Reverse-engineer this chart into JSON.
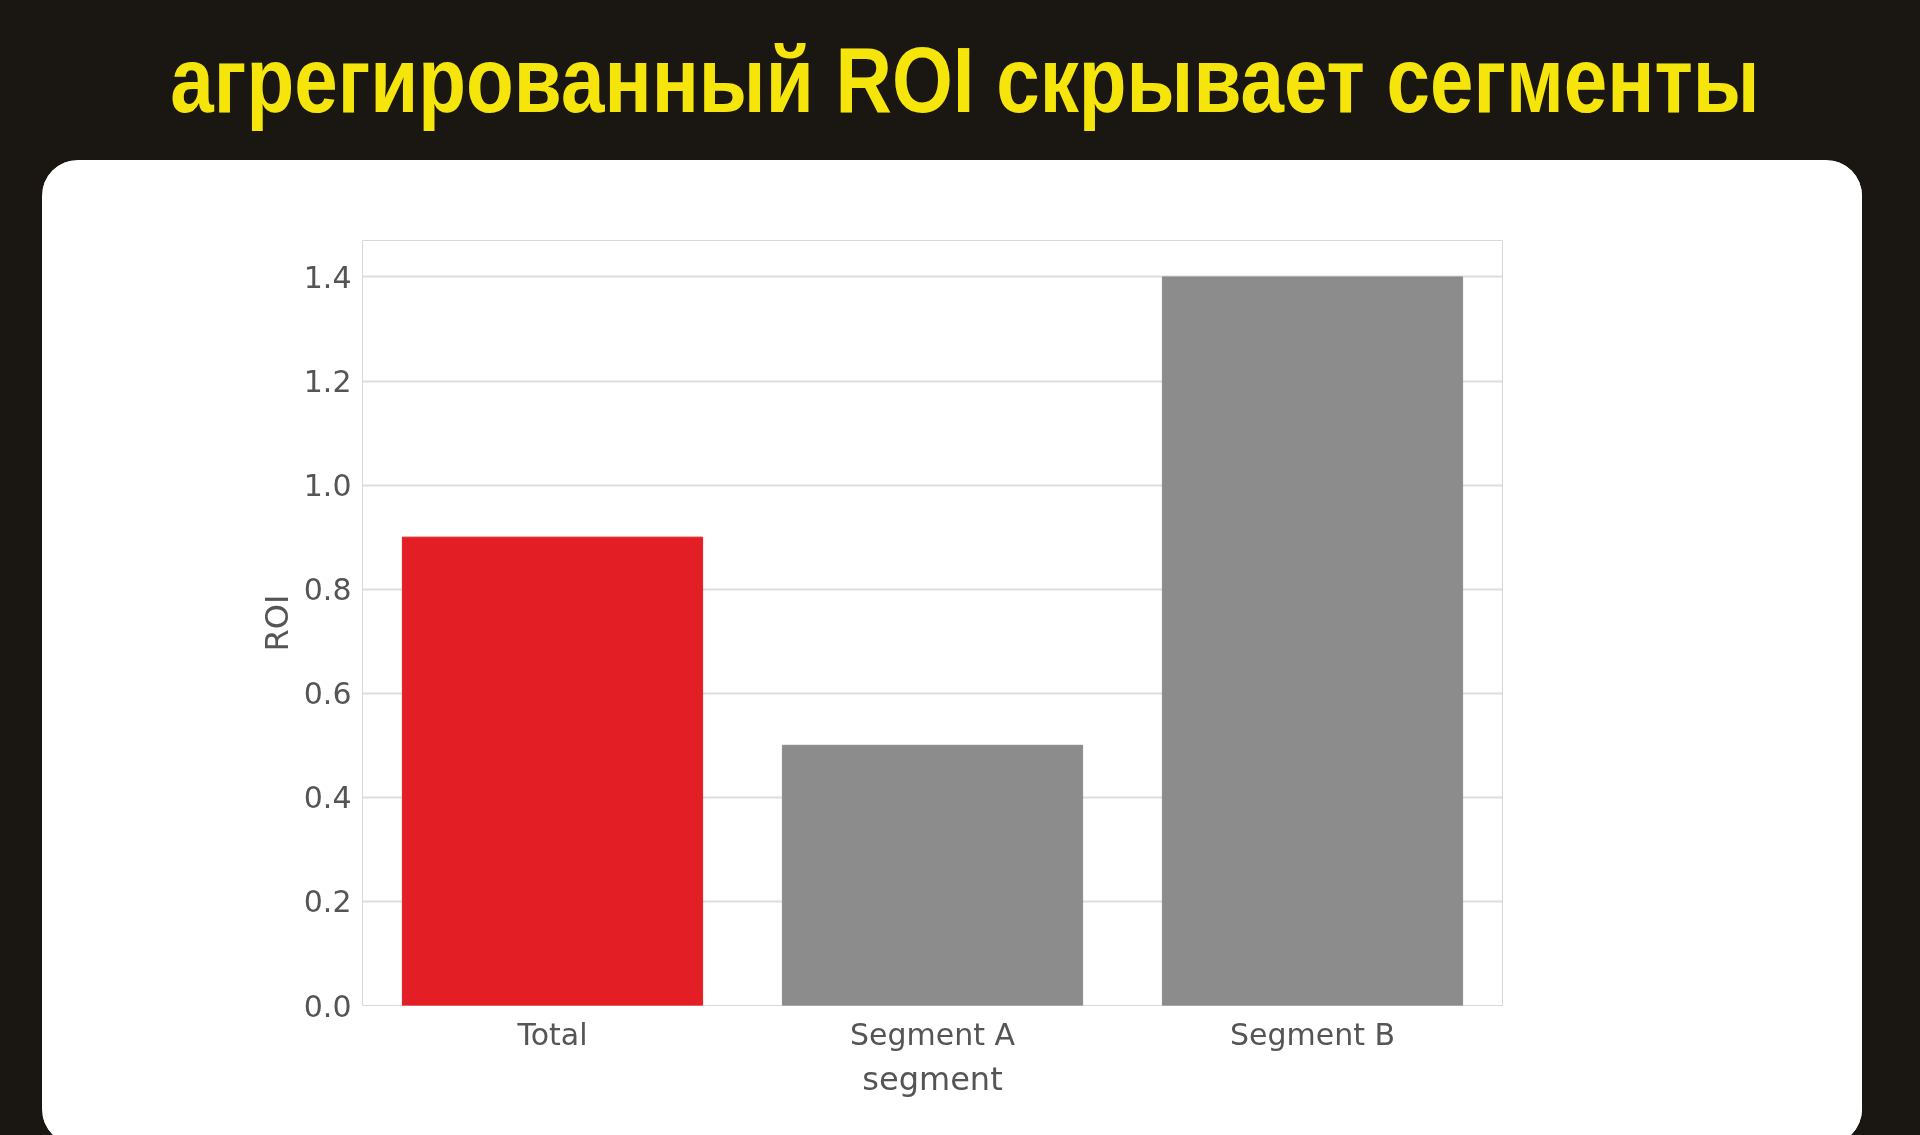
{
  "chart_data": {
    "type": "bar",
    "title": "агрегированный ROI скрывает сегменты",
    "xlabel": "segment",
    "ylabel": "ROI",
    "categories": [
      "Total",
      "Segment A",
      "Segment B"
    ],
    "values": [
      0.9,
      0.5,
      1.4
    ],
    "colors": [
      "#e31e24",
      "#8c8c8c",
      "#8c8c8c"
    ],
    "ylim": [
      0,
      1.47
    ],
    "yticks": [
      {
        "value": 0,
        "label": "0.0"
      },
      0.2,
      0.4,
      0.6,
      0.8,
      {
        "value": 1,
        "label": "1.0"
      },
      1.2,
      1.4
    ],
    "grid": "y"
  }
}
